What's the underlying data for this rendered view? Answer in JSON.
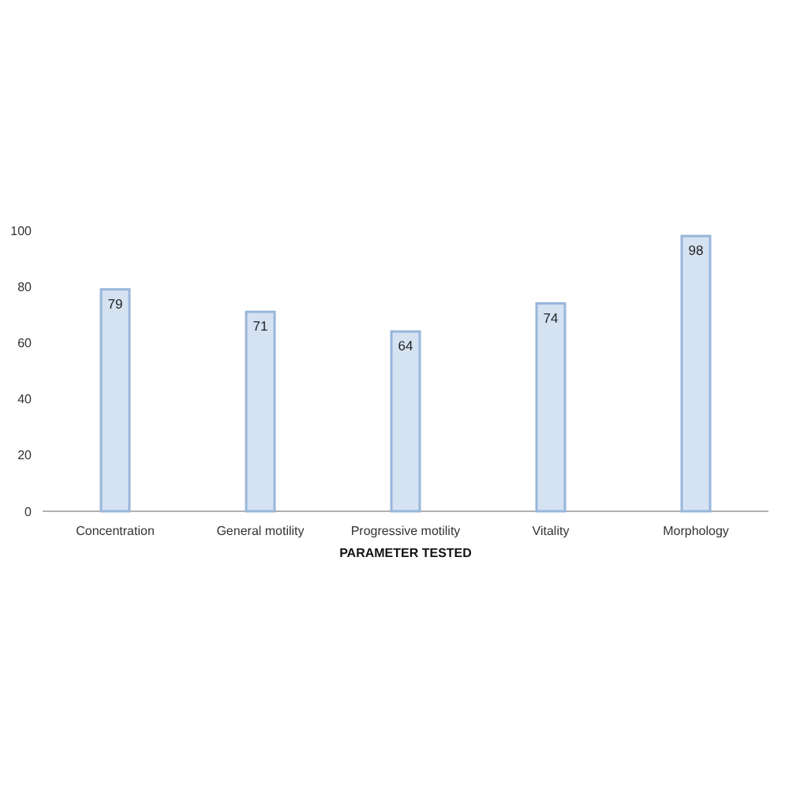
{
  "chart_data": {
    "type": "bar",
    "xlabel": "PARAMETER TESTED",
    "categories": [
      "Concentration",
      "General motility",
      "Progressive motility",
      "Vitality",
      "Morphology"
    ],
    "values": [
      79,
      71,
      64,
      74,
      98
    ],
    "color": "#d4e2f2",
    "ylim": [
      0,
      100
    ],
    "yticks": [
      0,
      20,
      40,
      60,
      80,
      100
    ],
    "data_labels": true
  }
}
